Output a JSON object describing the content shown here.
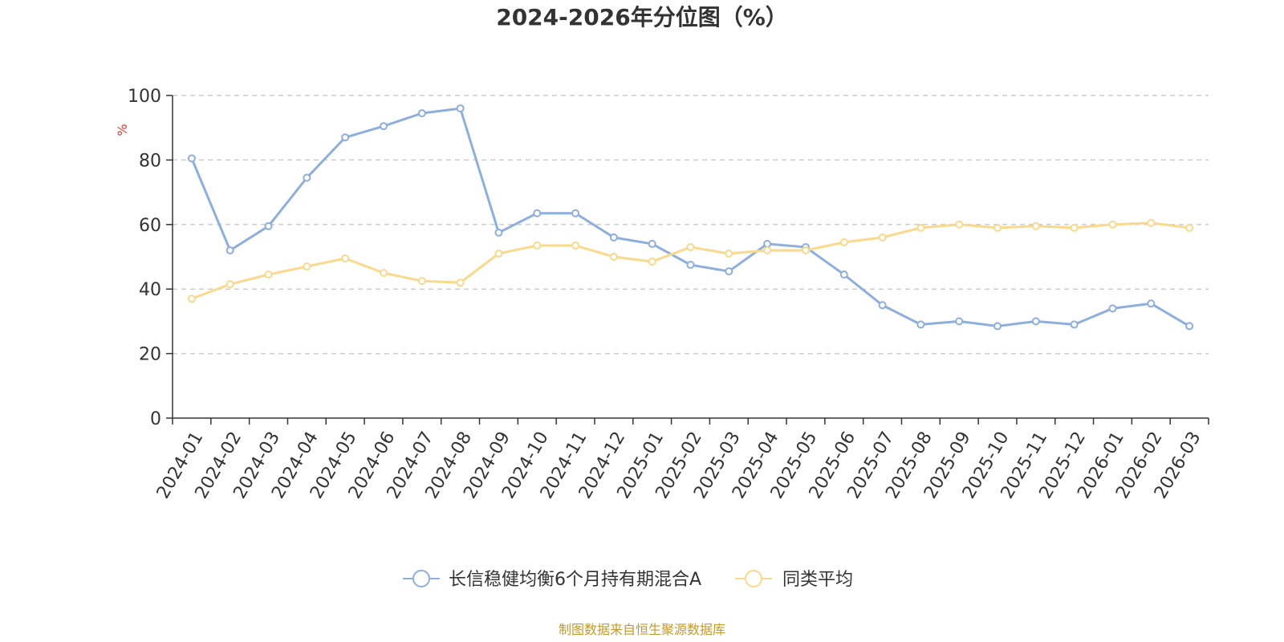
{
  "chart_data": {
    "type": "line",
    "title": "2024-2026年分位图（%）",
    "ylabel": "%",
    "ylim": [
      0,
      100
    ],
    "yticks": [
      0,
      20,
      40,
      60,
      80,
      100
    ],
    "grid": true,
    "legend_position": "bottom",
    "categories": [
      "2024-01",
      "2024-02",
      "2024-03",
      "2024-04",
      "2024-05",
      "2024-06",
      "2024-07",
      "2024-08",
      "2024-09",
      "2024-10",
      "2024-11",
      "2024-12",
      "2025-01",
      "2025-02",
      "2025-03",
      "2025-04",
      "2025-05",
      "2025-06",
      "2025-07",
      "2025-08",
      "2025-09",
      "2025-10",
      "2025-11",
      "2025-12",
      "2026-01",
      "2026-02",
      "2026-03"
    ],
    "series": [
      {
        "name": "长信稳健均衡6个月持有期混合A",
        "color": "#8eaedb",
        "values": [
          80.5,
          52,
          59.5,
          74.5,
          87,
          90.5,
          94.5,
          96,
          57.5,
          63.5,
          63.5,
          56,
          54,
          47.5,
          45.5,
          54,
          53,
          44.5,
          35,
          29,
          30,
          28.5,
          30,
          29,
          34,
          35.5,
          28.5
        ]
      },
      {
        "name": "同类平均",
        "color": "#fad98d",
        "values": [
          37,
          41.5,
          44.5,
          47,
          49.5,
          45,
          42.5,
          42,
          51,
          53.5,
          53.5,
          50,
          48.5,
          53,
          51,
          52,
          52,
          54.5,
          56,
          59,
          60,
          59,
          59.5,
          59,
          60,
          60.5,
          59
        ]
      }
    ]
  },
  "source": "制图数据来自恒生聚源数据库"
}
